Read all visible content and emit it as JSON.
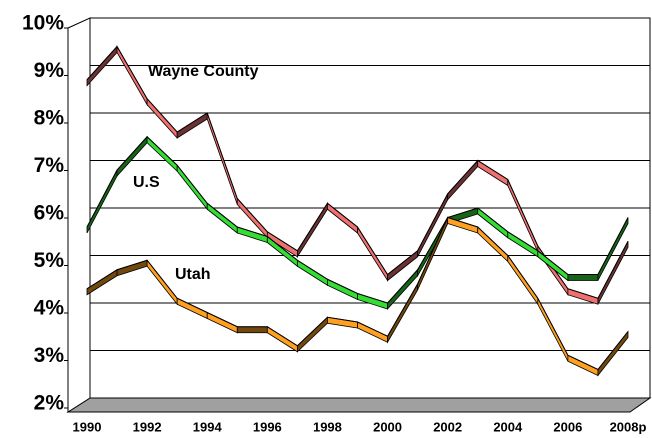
{
  "chart_data": {
    "type": "line",
    "categories": [
      "1990",
      null,
      "1992",
      null,
      "1994",
      null,
      "1996",
      null,
      "1998",
      null,
      "2000",
      null,
      "2002",
      null,
      "2004",
      null,
      "2006",
      null,
      "2008p"
    ],
    "series": [
      {
        "name": "Wayne County",
        "color": "#f07070",
        "values": [
          8.7,
          9.4,
          8.3,
          7.6,
          8.0,
          6.2,
          5.5,
          5.1,
          6.1,
          5.6,
          4.6,
          5.1,
          6.3,
          7.0,
          6.6,
          5.2,
          4.3,
          4.1,
          5.3
        ]
      },
      {
        "name": "U.S",
        "color": "#33dd33",
        "values": [
          5.6,
          6.8,
          7.5,
          6.9,
          6.1,
          5.6,
          5.4,
          4.9,
          4.5,
          4.2,
          4.0,
          4.7,
          5.8,
          6.0,
          5.5,
          5.1,
          4.6,
          4.6,
          5.8
        ]
      },
      {
        "name": "Utah",
        "color": "#ffa020",
        "values": [
          4.3,
          4.7,
          4.9,
          4.1,
          3.8,
          3.5,
          3.5,
          3.1,
          3.7,
          3.6,
          3.3,
          4.4,
          5.8,
          5.6,
          5.0,
          4.1,
          2.9,
          2.6,
          3.4
        ]
      }
    ],
    "ylim": [
      2,
      10
    ],
    "yticks": [
      {
        "value": 2,
        "label": "2%"
      },
      {
        "value": 3,
        "label": "3%"
      },
      {
        "value": 4,
        "label": "4%"
      },
      {
        "value": 5,
        "label": "5%"
      },
      {
        "value": 6,
        "label": "6%"
      },
      {
        "value": 7,
        "label": "7%"
      },
      {
        "value": 8,
        "label": "8%"
      },
      {
        "value": 9,
        "label": "9%"
      },
      {
        "value": 10,
        "label": "10%"
      }
    ],
    "grid": true
  }
}
